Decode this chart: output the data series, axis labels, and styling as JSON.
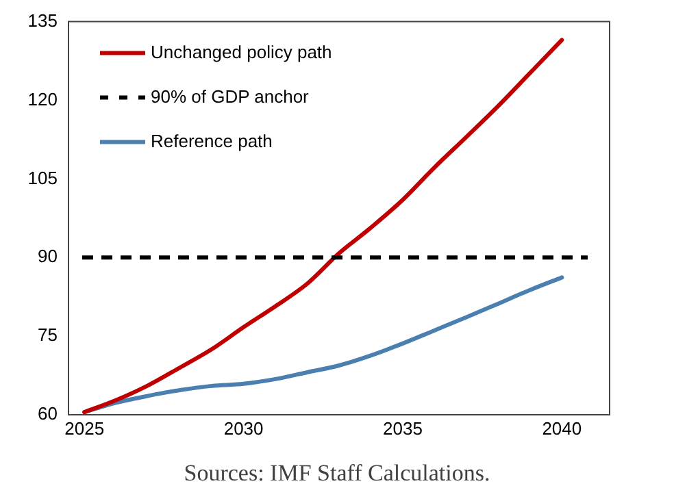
{
  "chart_data": {
    "type": "line",
    "x": [
      2025,
      2026,
      2027,
      2028,
      2029,
      2030,
      2031,
      2032,
      2033,
      2034,
      2035,
      2036,
      2037,
      2038,
      2039,
      2040
    ],
    "series": [
      {
        "name": "Unchanged policy path",
        "color": "#c00000",
        "values": [
          60.5,
          62.8,
          65.6,
          69.0,
          72.5,
          76.7,
          80.7,
          85.0,
          90.8,
          95.7,
          101.0,
          107.2,
          113.0,
          118.9,
          125.2,
          131.5
        ]
      },
      {
        "name": "Reference path",
        "color": "#4a7fb0",
        "values": [
          60.5,
          62.3,
          63.6,
          64.7,
          65.5,
          65.9,
          66.8,
          68.1,
          69.4,
          71.3,
          73.6,
          76.1,
          78.6,
          81.2,
          83.8,
          86.2
        ]
      }
    ],
    "ref_lines": [
      {
        "axis": "y",
        "value": 90,
        "label": "90% of GDP anchor",
        "color": "#000000",
        "line_style": "dashed"
      }
    ],
    "xlim": [
      2024.5,
      2041.5
    ],
    "xticks": [
      2025,
      2030,
      2035,
      2040
    ],
    "ylim": [
      60,
      135
    ],
    "yticks": [
      60,
      75,
      90,
      105,
      120,
      135
    ],
    "grid": false,
    "legend": "top left",
    "marker": "none",
    "line_style": "solid",
    "annotations": [
      "Sources: IMF Staff Calculations."
    ]
  }
}
